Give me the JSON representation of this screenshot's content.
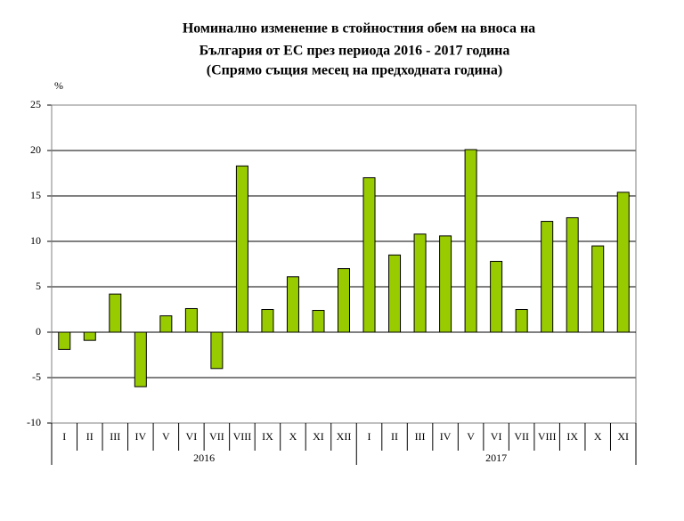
{
  "chart_data": {
    "type": "bar",
    "title": [
      "Номинално изменение в стойностния обем на вноса на",
      "България от ЕС през периода 2016 - 2017 година",
      "(Спрямо същия месец на предходната година)"
    ],
    "y_label": "%",
    "groups": [
      {
        "name": "2016",
        "categories": [
          "I",
          "II",
          "III",
          "IV",
          "V",
          "VI",
          "VII",
          "VIII",
          "IX",
          "X",
          "XI",
          "XII"
        ]
      },
      {
        "name": "2017",
        "categories": [
          "I",
          "II",
          "III",
          "IV",
          "V",
          "VI",
          "VII",
          "VIII",
          "IX",
          "X",
          "XI"
        ]
      }
    ],
    "values": [
      -1.9,
      -0.9,
      4.2,
      -6.0,
      1.8,
      2.6,
      -4.0,
      18.3,
      2.5,
      6.1,
      2.4,
      7.0,
      17.0,
      8.5,
      10.8,
      10.6,
      20.1,
      7.8,
      2.5,
      12.2,
      12.6,
      9.5,
      15.4
    ],
    "color": "#99cc00",
    "ylim": [
      -10,
      25
    ],
    "yticks": [
      -10,
      -5,
      0,
      5,
      10,
      15,
      20,
      25
    ],
    "grid": true
  }
}
